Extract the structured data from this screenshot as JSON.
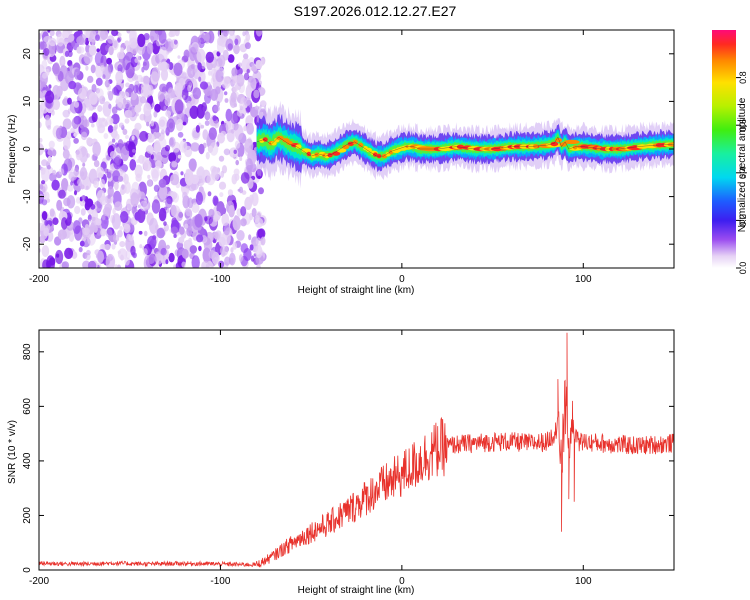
{
  "title": "S197.2026.012.12.27.E27",
  "chart_data": [
    {
      "type": "heatmap",
      "xlabel": "Height of straight line (km)",
      "ylabel": "Frequency (Hz)",
      "xlim": [
        -200,
        150
      ],
      "ylim": [
        -25,
        25
      ],
      "xticks": [
        -200,
        -100,
        0,
        100
      ],
      "yticks": [
        -20,
        -10,
        0,
        10,
        20
      ],
      "noise_region_x": [
        -200,
        -80
      ],
      "signal_region_x": [
        -80,
        150
      ],
      "signal_frequency_track": {
        "x": [
          -80,
          -76,
          -72,
          -68,
          -62,
          -58,
          -54,
          -50,
          -46,
          -42,
          -38,
          -34,
          -30,
          -26,
          -22,
          -18,
          -14,
          -10,
          -6,
          -2,
          2,
          6,
          10,
          20,
          30,
          40,
          50,
          60,
          70,
          80,
          84,
          86,
          88,
          90,
          92,
          96,
          100,
          110,
          120,
          130,
          140,
          150
        ],
        "y": [
          1.5,
          2.0,
          1.0,
          2.5,
          1.0,
          0.5,
          -0.5,
          -1.5,
          -1.0,
          -1.5,
          -1.0,
          0.0,
          1.0,
          1.5,
          0.5,
          -0.5,
          -1.5,
          -1.5,
          -0.5,
          0.0,
          0.5,
          0.5,
          0.0,
          0.0,
          0.5,
          0.0,
          0.0,
          0.5,
          0.5,
          0.8,
          1.2,
          2.5,
          0.5,
          1.5,
          0.0,
          0.5,
          0.5,
          0.0,
          0.0,
          0.5,
          0.8,
          1.0
        ]
      },
      "colorbar": {
        "label": "Normalized spectral amplitude",
        "range": [
          0,
          1
        ],
        "ticks": [
          "0.0",
          "0.2",
          "0.4",
          "0.6",
          "0.8"
        ],
        "tick_values": [
          0,
          0.2,
          0.4,
          0.6,
          0.8
        ]
      }
    },
    {
      "type": "line",
      "xlabel": "Height of straight line (km)",
      "ylabel": "SNR (10 * v/v)",
      "xlim": [
        -200,
        150
      ],
      "ylim": [
        0,
        880
      ],
      "xticks": [
        -200,
        -100,
        0,
        100
      ],
      "yticks": [
        0,
        200,
        400,
        600,
        800
      ],
      "color": "#e8322c",
      "series": [
        {
          "name": "SNR",
          "x": [
            -200,
            -180,
            -160,
            -140,
            -120,
            -100,
            -90,
            -80,
            -75,
            -70,
            -65,
            -60,
            -55,
            -50,
            -45,
            -40,
            -35,
            -30,
            -25,
            -20,
            -15,
            -10,
            -5,
            0,
            5,
            10,
            15,
            20,
            25,
            30,
            40,
            50,
            60,
            70,
            80,
            84,
            86,
            88,
            90,
            92,
            94,
            96,
            98,
            100,
            110,
            120,
            130,
            140,
            150
          ],
          "y": [
            25,
            22,
            25,
            22,
            24,
            22,
            20,
            20,
            35,
            55,
            80,
            100,
            120,
            140,
            155,
            170,
            195,
            215,
            240,
            265,
            290,
            310,
            330,
            350,
            375,
            400,
            425,
            445,
            455,
            460,
            465,
            470,
            470,
            465,
            470,
            500,
            560,
            380,
            640,
            450,
            520,
            480,
            470,
            470,
            465,
            460,
            455,
            460,
            465
          ]
        }
      ],
      "spikes": [
        {
          "x": 88,
          "y": 140
        },
        {
          "x": 86,
          "y": 700
        },
        {
          "x": 91,
          "y": 870
        },
        {
          "x": 92,
          "y": 260
        },
        {
          "x": 95,
          "y": 250
        },
        {
          "x": 94,
          "y": 620
        }
      ]
    }
  ]
}
